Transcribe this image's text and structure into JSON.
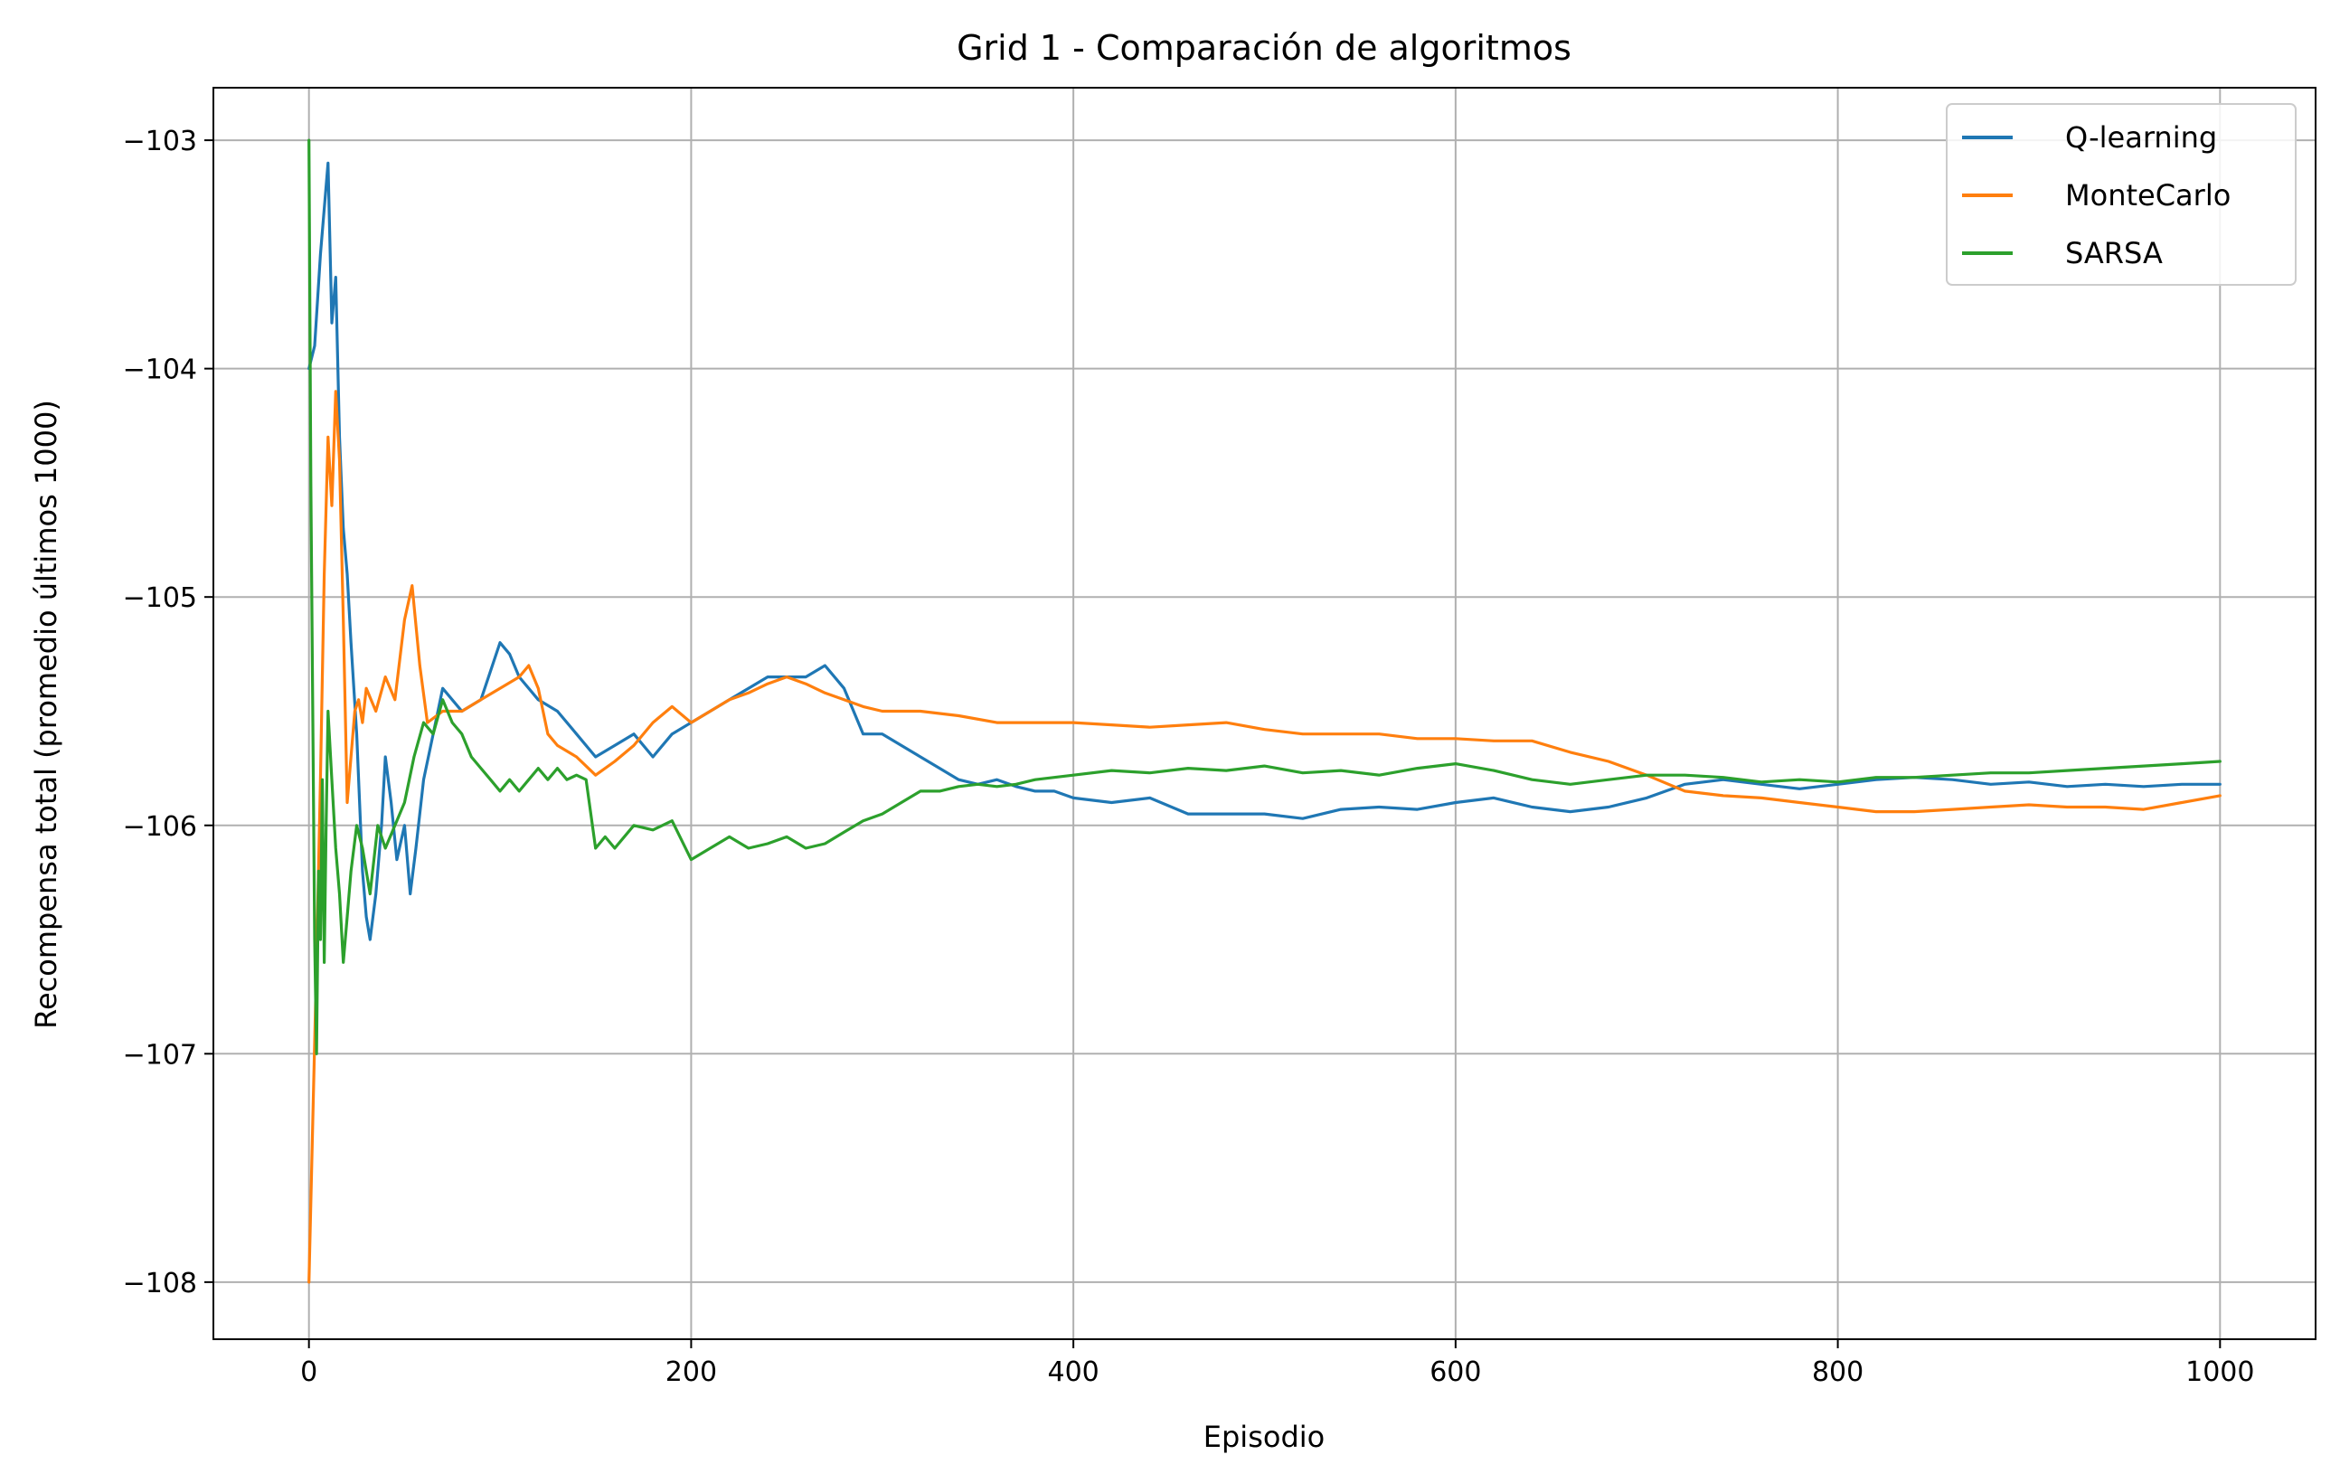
{
  "chart_data": {
    "type": "line",
    "title": "Grid 1 - Comparación de algoritmos",
    "xlabel": "Episodio",
    "ylabel": "Recompensa total (promedio últimos 1000)",
    "xlim": [
      -50,
      1050
    ],
    "ylim": [
      -108.25,
      -102.77
    ],
    "xticks": [
      0,
      200,
      400,
      600,
      800,
      1000
    ],
    "yticks": [
      -108,
      -107,
      -106,
      -105,
      -104,
      -103
    ],
    "xtick_labels": [
      "0",
      "200",
      "400",
      "600",
      "800",
      "1000"
    ],
    "ytick_labels": [
      "−108",
      "−107",
      "−106",
      "−105",
      "−104",
      "−103"
    ],
    "grid": true,
    "legend_position": "top-right",
    "series": [
      {
        "name": "Q-learning",
        "color": "#1f77b4",
        "points": [
          [
            0,
            -104.0
          ],
          [
            3,
            -103.9
          ],
          [
            6,
            -103.5
          ],
          [
            9,
            -103.2
          ],
          [
            10,
            -103.1
          ],
          [
            12,
            -103.8
          ],
          [
            14,
            -103.6
          ],
          [
            16,
            -104.3
          ],
          [
            18,
            -104.7
          ],
          [
            20,
            -104.9
          ],
          [
            22,
            -105.2
          ],
          [
            25,
            -105.6
          ],
          [
            28,
            -106.2
          ],
          [
            30,
            -106.4
          ],
          [
            32,
            -106.5
          ],
          [
            35,
            -106.3
          ],
          [
            38,
            -106.0
          ],
          [
            40,
            -105.7
          ],
          [
            43,
            -105.9
          ],
          [
            46,
            -106.15
          ],
          [
            50,
            -106.0
          ],
          [
            53,
            -106.3
          ],
          [
            56,
            -106.1
          ],
          [
            60,
            -105.8
          ],
          [
            65,
            -105.6
          ],
          [
            70,
            -105.4
          ],
          [
            80,
            -105.5
          ],
          [
            90,
            -105.45
          ],
          [
            100,
            -105.2
          ],
          [
            105,
            -105.25
          ],
          [
            110,
            -105.35
          ],
          [
            120,
            -105.45
          ],
          [
            130,
            -105.5
          ],
          [
            140,
            -105.6
          ],
          [
            150,
            -105.7
          ],
          [
            160,
            -105.65
          ],
          [
            170,
            -105.6
          ],
          [
            180,
            -105.7
          ],
          [
            190,
            -105.6
          ],
          [
            200,
            -105.55
          ],
          [
            210,
            -105.5
          ],
          [
            220,
            -105.45
          ],
          [
            230,
            -105.4
          ],
          [
            240,
            -105.35
          ],
          [
            250,
            -105.35
          ],
          [
            260,
            -105.35
          ],
          [
            270,
            -105.3
          ],
          [
            280,
            -105.4
          ],
          [
            290,
            -105.6
          ],
          [
            300,
            -105.6
          ],
          [
            310,
            -105.65
          ],
          [
            320,
            -105.7
          ],
          [
            330,
            -105.75
          ],
          [
            340,
            -105.8
          ],
          [
            350,
            -105.82
          ],
          [
            360,
            -105.8
          ],
          [
            370,
            -105.83
          ],
          [
            380,
            -105.85
          ],
          [
            390,
            -105.85
          ],
          [
            400,
            -105.88
          ],
          [
            420,
            -105.9
          ],
          [
            440,
            -105.88
          ],
          [
            460,
            -105.95
          ],
          [
            480,
            -105.95
          ],
          [
            500,
            -105.95
          ],
          [
            520,
            -105.97
          ],
          [
            540,
            -105.93
          ],
          [
            560,
            -105.92
          ],
          [
            580,
            -105.93
          ],
          [
            600,
            -105.9
          ],
          [
            620,
            -105.88
          ],
          [
            640,
            -105.92
          ],
          [
            660,
            -105.94
          ],
          [
            680,
            -105.92
          ],
          [
            700,
            -105.88
          ],
          [
            720,
            -105.82
          ],
          [
            740,
            -105.8
          ],
          [
            760,
            -105.82
          ],
          [
            780,
            -105.84
          ],
          [
            800,
            -105.82
          ],
          [
            820,
            -105.8
          ],
          [
            840,
            -105.79
          ],
          [
            860,
            -105.8
          ],
          [
            880,
            -105.82
          ],
          [
            900,
            -105.81
          ],
          [
            920,
            -105.83
          ],
          [
            940,
            -105.82
          ],
          [
            960,
            -105.83
          ],
          [
            980,
            -105.82
          ],
          [
            1000,
            -105.82
          ]
        ]
      },
      {
        "name": "MonteCarlo",
        "color": "#ff7f0e",
        "points": [
          [
            0,
            -108.0
          ],
          [
            2,
            -107.3
          ],
          [
            4,
            -106.6
          ],
          [
            6,
            -105.8
          ],
          [
            8,
            -104.9
          ],
          [
            10,
            -104.3
          ],
          [
            12,
            -104.6
          ],
          [
            14,
            -104.1
          ],
          [
            16,
            -104.4
          ],
          [
            18,
            -105.1
          ],
          [
            20,
            -105.9
          ],
          [
            22,
            -105.7
          ],
          [
            24,
            -105.5
          ],
          [
            26,
            -105.45
          ],
          [
            28,
            -105.55
          ],
          [
            30,
            -105.4
          ],
          [
            35,
            -105.5
          ],
          [
            40,
            -105.35
          ],
          [
            45,
            -105.45
          ],
          [
            50,
            -105.1
          ],
          [
            54,
            -104.95
          ],
          [
            58,
            -105.3
          ],
          [
            62,
            -105.55
          ],
          [
            70,
            -105.5
          ],
          [
            80,
            -105.5
          ],
          [
            90,
            -105.45
          ],
          [
            100,
            -105.4
          ],
          [
            110,
            -105.35
          ],
          [
            115,
            -105.3
          ],
          [
            120,
            -105.4
          ],
          [
            125,
            -105.6
          ],
          [
            130,
            -105.65
          ],
          [
            140,
            -105.7
          ],
          [
            150,
            -105.78
          ],
          [
            160,
            -105.72
          ],
          [
            170,
            -105.65
          ],
          [
            180,
            -105.55
          ],
          [
            190,
            -105.48
          ],
          [
            200,
            -105.55
          ],
          [
            210,
            -105.5
          ],
          [
            220,
            -105.45
          ],
          [
            230,
            -105.42
          ],
          [
            240,
            -105.38
          ],
          [
            250,
            -105.35
          ],
          [
            260,
            -105.38
          ],
          [
            270,
            -105.42
          ],
          [
            280,
            -105.45
          ],
          [
            290,
            -105.48
          ],
          [
            300,
            -105.5
          ],
          [
            320,
            -105.5
          ],
          [
            340,
            -105.52
          ],
          [
            360,
            -105.55
          ],
          [
            380,
            -105.55
          ],
          [
            400,
            -105.55
          ],
          [
            420,
            -105.56
          ],
          [
            440,
            -105.57
          ],
          [
            460,
            -105.56
          ],
          [
            480,
            -105.55
          ],
          [
            500,
            -105.58
          ],
          [
            520,
            -105.6
          ],
          [
            540,
            -105.6
          ],
          [
            560,
            -105.6
          ],
          [
            580,
            -105.62
          ],
          [
            600,
            -105.62
          ],
          [
            620,
            -105.63
          ],
          [
            640,
            -105.63
          ],
          [
            660,
            -105.68
          ],
          [
            680,
            -105.72
          ],
          [
            700,
            -105.78
          ],
          [
            720,
            -105.85
          ],
          [
            740,
            -105.87
          ],
          [
            760,
            -105.88
          ],
          [
            780,
            -105.9
          ],
          [
            800,
            -105.92
          ],
          [
            820,
            -105.94
          ],
          [
            840,
            -105.94
          ],
          [
            860,
            -105.93
          ],
          [
            880,
            -105.92
          ],
          [
            900,
            -105.91
          ],
          [
            920,
            -105.92
          ],
          [
            940,
            -105.92
          ],
          [
            960,
            -105.93
          ],
          [
            980,
            -105.9
          ],
          [
            1000,
            -105.87
          ]
        ]
      },
      {
        "name": "SARSA",
        "color": "#2ca02c",
        "points": [
          [
            0,
            -103.0
          ],
          [
            1,
            -104.5
          ],
          [
            2,
            -105.5
          ],
          [
            3,
            -106.5
          ],
          [
            4,
            -107.0
          ],
          [
            5,
            -106.2
          ],
          [
            6,
            -106.5
          ],
          [
            7,
            -105.8
          ],
          [
            8,
            -106.6
          ],
          [
            9,
            -106.0
          ],
          [
            10,
            -105.5
          ],
          [
            12,
            -105.8
          ],
          [
            14,
            -106.1
          ],
          [
            16,
            -106.3
          ],
          [
            18,
            -106.6
          ],
          [
            20,
            -106.4
          ],
          [
            22,
            -106.2
          ],
          [
            25,
            -106.0
          ],
          [
            28,
            -106.1
          ],
          [
            32,
            -106.3
          ],
          [
            36,
            -106.0
          ],
          [
            40,
            -106.1
          ],
          [
            45,
            -106.0
          ],
          [
            50,
            -105.9
          ],
          [
            55,
            -105.7
          ],
          [
            60,
            -105.55
          ],
          [
            65,
            -105.6
          ],
          [
            70,
            -105.45
          ],
          [
            75,
            -105.55
          ],
          [
            80,
            -105.6
          ],
          [
            85,
            -105.7
          ],
          [
            90,
            -105.75
          ],
          [
            95,
            -105.8
          ],
          [
            100,
            -105.85
          ],
          [
            105,
            -105.8
          ],
          [
            110,
            -105.85
          ],
          [
            115,
            -105.8
          ],
          [
            120,
            -105.75
          ],
          [
            125,
            -105.8
          ],
          [
            130,
            -105.75
          ],
          [
            135,
            -105.8
          ],
          [
            140,
            -105.78
          ],
          [
            145,
            -105.8
          ],
          [
            150,
            -106.1
          ],
          [
            155,
            -106.05
          ],
          [
            160,
            -106.1
          ],
          [
            170,
            -106.0
          ],
          [
            180,
            -106.02
          ],
          [
            190,
            -105.98
          ],
          [
            200,
            -106.15
          ],
          [
            210,
            -106.1
          ],
          [
            220,
            -106.05
          ],
          [
            230,
            -106.1
          ],
          [
            240,
            -106.08
          ],
          [
            250,
            -106.05
          ],
          [
            260,
            -106.1
          ],
          [
            270,
            -106.08
          ],
          [
            280,
            -106.03
          ],
          [
            290,
            -105.98
          ],
          [
            300,
            -105.95
          ],
          [
            310,
            -105.9
          ],
          [
            320,
            -105.85
          ],
          [
            330,
            -105.85
          ],
          [
            340,
            -105.83
          ],
          [
            350,
            -105.82
          ],
          [
            360,
            -105.83
          ],
          [
            370,
            -105.82
          ],
          [
            380,
            -105.8
          ],
          [
            400,
            -105.78
          ],
          [
            420,
            -105.76
          ],
          [
            440,
            -105.77
          ],
          [
            460,
            -105.75
          ],
          [
            480,
            -105.76
          ],
          [
            500,
            -105.74
          ],
          [
            520,
            -105.77
          ],
          [
            540,
            -105.76
          ],
          [
            560,
            -105.78
          ],
          [
            580,
            -105.75
          ],
          [
            600,
            -105.73
          ],
          [
            620,
            -105.76
          ],
          [
            640,
            -105.8
          ],
          [
            660,
            -105.82
          ],
          [
            680,
            -105.8
          ],
          [
            700,
            -105.78
          ],
          [
            720,
            -105.78
          ],
          [
            740,
            -105.79
          ],
          [
            760,
            -105.81
          ],
          [
            780,
            -105.8
          ],
          [
            800,
            -105.81
          ],
          [
            820,
            -105.79
          ],
          [
            840,
            -105.79
          ],
          [
            860,
            -105.78
          ],
          [
            880,
            -105.77
          ],
          [
            900,
            -105.77
          ],
          [
            920,
            -105.76
          ],
          [
            940,
            -105.75
          ],
          [
            960,
            -105.74
          ],
          [
            980,
            -105.73
          ],
          [
            1000,
            -105.72
          ]
        ]
      }
    ]
  }
}
